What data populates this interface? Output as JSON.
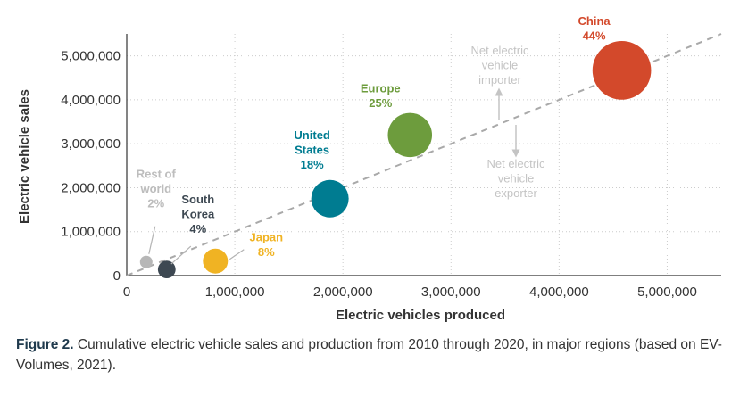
{
  "chart_data": {
    "type": "scatter",
    "subtype": "bubble",
    "xlabel": "Electric vehicles produced",
    "ylabel": "Electric vehicle sales",
    "xlim": [
      0,
      5500000
    ],
    "ylim": [
      0,
      5500000
    ],
    "x_ticks": [
      "0",
      "1,000,000",
      "2,000,000",
      "3,000,000",
      "4,000,000",
      "5,000,000"
    ],
    "y_ticks": [
      "0",
      "1,000,000",
      "2,000,000",
      "3,000,000",
      "4,000,000",
      "5,000,000"
    ],
    "grid": "dotted",
    "reference_line": "y = x (dashed)",
    "series": [
      {
        "name": "Rest of world",
        "label_lines": [
          "Rest of",
          "world",
          "2%"
        ],
        "share_pct": 2,
        "x": 180000,
        "y": 310000,
        "color": "#b7b7b7"
      },
      {
        "name": "South Korea",
        "label_lines": [
          "South",
          "Korea",
          "4%"
        ],
        "share_pct": 4,
        "x": 370000,
        "y": 140000,
        "color": "#3d4852"
      },
      {
        "name": "Japan",
        "label_lines": [
          "Japan",
          "8%"
        ],
        "share_pct": 8,
        "x": 820000,
        "y": 330000,
        "color": "#f0b323"
      },
      {
        "name": "United States",
        "label_lines": [
          "United",
          "States",
          "18%"
        ],
        "share_pct": 18,
        "x": 1880000,
        "y": 1750000,
        "color": "#007c91"
      },
      {
        "name": "Europe",
        "label_lines": [
          "Europe",
          "25%"
        ],
        "share_pct": 25,
        "x": 2620000,
        "y": 3200000,
        "color": "#6d9c3d"
      },
      {
        "name": "China",
        "label_lines": [
          "China",
          "44%"
        ],
        "share_pct": 44,
        "x": 4580000,
        "y": 4670000,
        "color": "#d3492b"
      }
    ],
    "annotations": [
      {
        "id": "importer",
        "lines": [
          "Net electric",
          "vehicle",
          "importer"
        ]
      },
      {
        "id": "exporter",
        "lines": [
          "Net electric",
          "vehicle",
          "exporter"
        ]
      }
    ]
  },
  "caption": {
    "label": "Figure 2.",
    "text": " Cumulative electric vehicle sales and production from 2010 through 2020, in major regions (based on EV-Volumes, 2021)."
  }
}
